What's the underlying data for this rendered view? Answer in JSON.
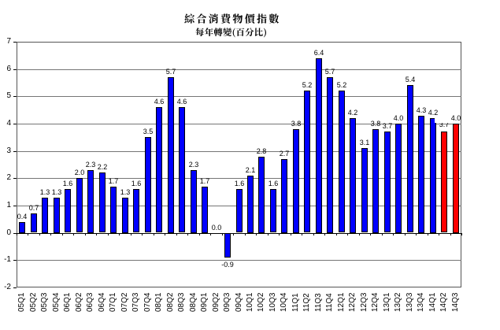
{
  "chart_data": {
    "type": "bar",
    "title": "綜合消費物價指數",
    "subtitle": "每年轉變(百分比)",
    "categories": [
      "05Q1",
      "05Q2",
      "05Q3",
      "05Q4",
      "06Q1",
      "06Q2",
      "06Q3",
      "06Q4",
      "07Q1",
      "07Q2",
      "07Q3",
      "07Q4",
      "08Q1",
      "08Q2",
      "08Q3",
      "08Q4",
      "09Q1",
      "09Q2",
      "09Q3",
      "09Q4",
      "10Q1",
      "10Q2",
      "10Q3",
      "10Q4",
      "11Q1",
      "11Q2",
      "11Q3",
      "11Q4",
      "12Q1",
      "12Q2",
      "12Q3",
      "12Q4",
      "13Q1",
      "13Q2",
      "13Q3",
      "13Q4",
      "14Q1",
      "14Q2",
      "14Q3"
    ],
    "values": [
      0.4,
      0.7,
      1.3,
      1.3,
      1.6,
      2.0,
      2.3,
      2.2,
      1.7,
      1.3,
      1.6,
      3.5,
      4.6,
      5.7,
      4.6,
      2.3,
      1.7,
      0.0,
      -0.9,
      1.6,
      2.1,
      2.8,
      1.6,
      2.7,
      3.8,
      5.2,
      6.4,
      5.7,
      5.2,
      4.2,
      3.1,
      3.8,
      3.7,
      4.0,
      5.4,
      4.3,
      4.2,
      3.7,
      4.0
    ],
    "data_label_format": "one_decimal",
    "ylim": [
      -2,
      7
    ],
    "ytick_labels": [
      "7",
      "6",
      "5",
      "4",
      "3",
      "2",
      "1",
      "0",
      "-1",
      "-2"
    ],
    "grid": true,
    "legend": "none",
    "colors": {
      "bar_default": "#0000FF",
      "bar_highlight": "#FF0000",
      "bar_border": "#000000",
      "highlight_categories": [
        "14Q2",
        "14Q3"
      ]
    }
  }
}
